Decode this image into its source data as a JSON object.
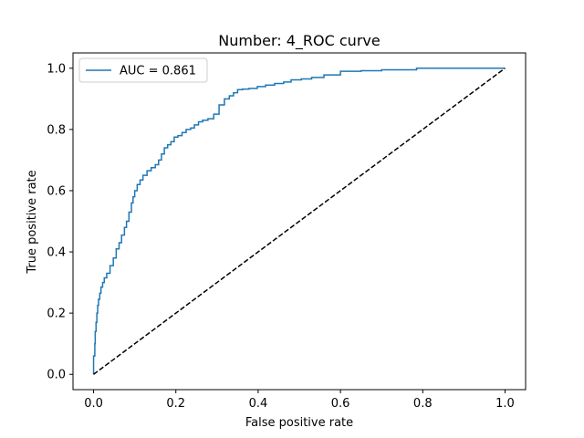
{
  "chart_data": {
    "type": "line",
    "title": "Number: 4_ROC curve",
    "xlabel": "False positive rate",
    "ylabel": "True positive rate",
    "xlim": [
      -0.05,
      1.05
    ],
    "ylim": [
      -0.05,
      1.05
    ],
    "x_ticks": [
      "0.0",
      "0.2",
      "0.4",
      "0.6",
      "0.8",
      "1.0"
    ],
    "y_ticks": [
      "0.0",
      "0.2",
      "0.4",
      "0.6",
      "0.8",
      "1.0"
    ],
    "grid": false,
    "legend_position": "top-left",
    "series": [
      {
        "name": "AUC = 0.861",
        "color": "#1f77b4",
        "style": "step",
        "x": [
          0.0,
          0.0,
          0.003,
          0.004,
          0.006,
          0.008,
          0.01,
          0.012,
          0.015,
          0.018,
          0.022,
          0.026,
          0.032,
          0.04,
          0.048,
          0.055,
          0.062,
          0.068,
          0.075,
          0.08,
          0.086,
          0.092,
          0.096,
          0.1,
          0.106,
          0.113,
          0.12,
          0.13,
          0.14,
          0.15,
          0.158,
          0.165,
          0.172,
          0.18,
          0.188,
          0.196,
          0.205,
          0.215,
          0.225,
          0.236,
          0.245,
          0.255,
          0.265,
          0.278,
          0.292,
          0.305,
          0.318,
          0.33,
          0.34,
          0.35,
          0.362,
          0.378,
          0.398,
          0.418,
          0.44,
          0.462,
          0.48,
          0.505,
          0.53,
          0.56,
          0.6,
          0.65,
          0.7,
          0.76,
          0.785,
          0.85,
          0.92,
          1.0
        ],
        "y": [
          0.0,
          0.06,
          0.1,
          0.14,
          0.17,
          0.2,
          0.225,
          0.245,
          0.265,
          0.285,
          0.3,
          0.315,
          0.33,
          0.355,
          0.38,
          0.41,
          0.43,
          0.455,
          0.48,
          0.5,
          0.53,
          0.56,
          0.58,
          0.6,
          0.62,
          0.635,
          0.65,
          0.665,
          0.675,
          0.685,
          0.7,
          0.72,
          0.74,
          0.75,
          0.76,
          0.775,
          0.78,
          0.79,
          0.8,
          0.805,
          0.815,
          0.825,
          0.83,
          0.835,
          0.85,
          0.88,
          0.9,
          0.91,
          0.92,
          0.93,
          0.932,
          0.934,
          0.94,
          0.945,
          0.95,
          0.955,
          0.962,
          0.965,
          0.97,
          0.978,
          0.99,
          0.992,
          0.995,
          0.995,
          1.0,
          1.0,
          1.0,
          1.0
        ]
      },
      {
        "color": "#000000",
        "style": "dashed",
        "x": [
          0,
          1
        ],
        "y": [
          0,
          1
        ]
      }
    ]
  }
}
